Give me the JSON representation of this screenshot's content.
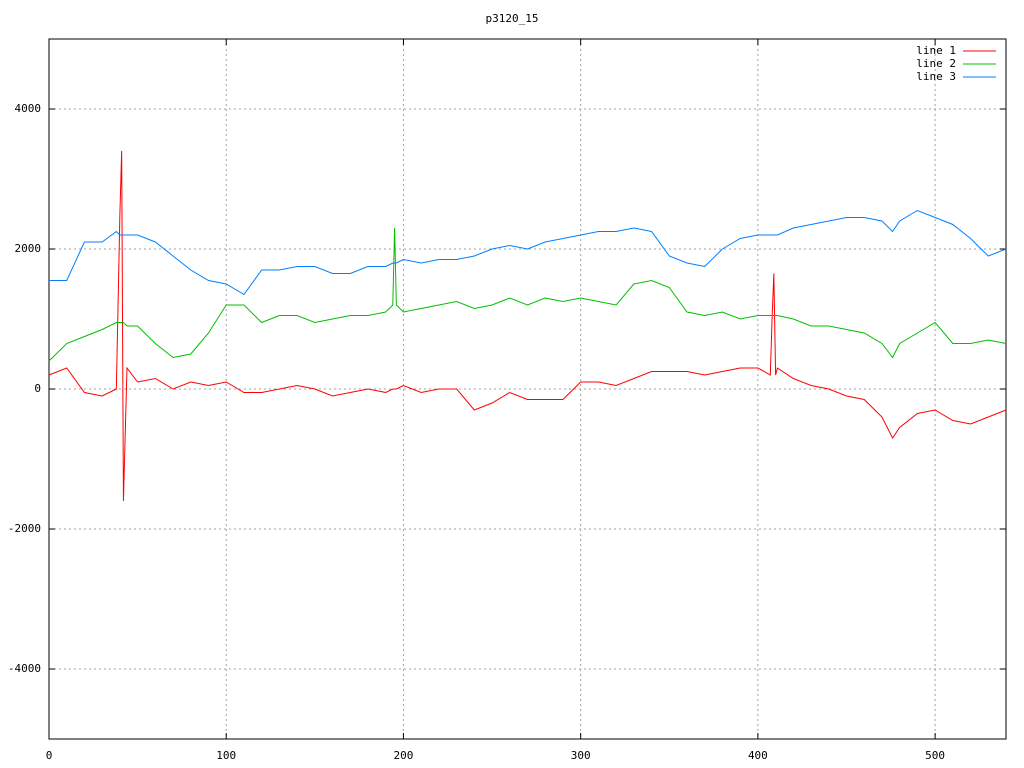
{
  "chart_data": {
    "type": "line",
    "title": "p3120_15",
    "x": [
      0,
      10,
      20,
      30,
      38,
      40,
      41,
      42,
      44,
      50,
      60,
      70,
      80,
      90,
      100,
      110,
      120,
      130,
      140,
      150,
      160,
      170,
      180,
      190,
      194,
      195,
      196,
      200,
      210,
      220,
      230,
      240,
      250,
      260,
      270,
      280,
      290,
      300,
      310,
      320,
      330,
      340,
      350,
      360,
      370,
      380,
      390,
      400,
      407,
      408,
      409,
      410,
      411,
      420,
      430,
      440,
      450,
      460,
      470,
      476,
      480,
      490,
      500,
      510,
      520,
      530,
      540
    ],
    "series": [
      {
        "name": "line 1",
        "color": "#ff0000",
        "values": [
          200,
          300,
          -50,
          -100,
          0,
          2500,
          3400,
          -1600,
          300,
          100,
          150,
          0,
          100,
          50,
          100,
          -50,
          -50,
          0,
          50,
          0,
          -100,
          -50,
          0,
          -50,
          0,
          0,
          0,
          50,
          -50,
          0,
          0,
          -300,
          -200,
          -50,
          -150,
          -150,
          -150,
          100,
          100,
          50,
          150,
          250,
          250,
          250,
          200,
          250,
          300,
          300,
          200,
          1000,
          1650,
          200,
          300,
          150,
          50,
          0,
          -100,
          -150,
          -400,
          -700,
          -550,
          -350,
          -300,
          -450,
          -500,
          -400,
          -300
        ]
      },
      {
        "name": "line 2",
        "color": "#00c000",
        "values": [
          400,
          650,
          750,
          850,
          950,
          950,
          950,
          950,
          900,
          900,
          650,
          450,
          500,
          800,
          1200,
          1200,
          950,
          1050,
          1050,
          950,
          1000,
          1050,
          1050,
          1100,
          1200,
          2300,
          1200,
          1100,
          1150,
          1200,
          1250,
          1150,
          1200,
          1300,
          1200,
          1300,
          1250,
          1300,
          1250,
          1200,
          1500,
          1550,
          1450,
          1100,
          1050,
          1100,
          1000,
          1050,
          1050,
          1050,
          1050,
          1050,
          1050,
          1000,
          900,
          900,
          850,
          800,
          650,
          450,
          650,
          800,
          950,
          650,
          650,
          700,
          650
        ]
      },
      {
        "name": "line 3",
        "color": "#0080ff",
        "values": [
          1550,
          1550,
          2100,
          2100,
          2250,
          2200,
          2200,
          2200,
          2200,
          2200,
          2100,
          1900,
          1700,
          1550,
          1500,
          1350,
          1700,
          1700,
          1750,
          1750,
          1650,
          1650,
          1750,
          1750,
          1800,
          1800,
          1800,
          1850,
          1800,
          1850,
          1850,
          1900,
          2000,
          2050,
          2000,
          2100,
          2150,
          2200,
          2250,
          2250,
          2300,
          2250,
          1900,
          1800,
          1750,
          2000,
          2150,
          2200,
          2200,
          2200,
          2200,
          2200,
          2200,
          2300,
          2350,
          2400,
          2450,
          2450,
          2400,
          2250,
          2400,
          2550,
          2450,
          2350,
          2150,
          1900,
          2000
        ]
      }
    ],
    "xlim": [
      0,
      540
    ],
    "xticks": [
      0,
      100,
      200,
      300,
      400,
      500
    ],
    "ylim": [
      -5000,
      5000
    ],
    "yticks": [
      -4000,
      -2000,
      0,
      2000,
      4000
    ],
    "grid": true,
    "legend": "top-right"
  }
}
